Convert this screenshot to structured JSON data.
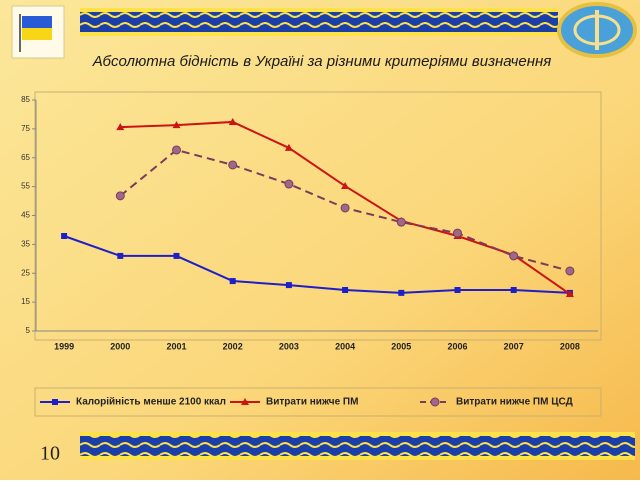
{
  "slide_number": "10",
  "chart_data": {
    "type": "line",
    "title": "Абсолютна бідність в Україні за різними критеріями визначення",
    "categories": [
      "1999",
      "2000",
      "2001",
      "2002",
      "2003",
      "2004",
      "2005",
      "2006",
      "2007",
      "2008"
    ],
    "series": [
      {
        "name": "Калорійність менше 2100 ккал",
        "color": "#1f1fc8",
        "marker": "square",
        "dash": false,
        "values": [
          37.9,
          31.0,
          31.0,
          22.3,
          20.9,
          19.2,
          18.2,
          19.2,
          19.2,
          18.2
        ]
      },
      {
        "name": "Витрати нижче ПМ",
        "color": "#cc1414",
        "marker": "triangle",
        "dash": false,
        "values": [
          null,
          75.6,
          76.3,
          77.4,
          68.4,
          55.2,
          43.1,
          37.9,
          31.3,
          17.8
        ]
      },
      {
        "name": "Витрати нижче ПМ ЦСД",
        "color": "#7a3c5a",
        "marker": "circle",
        "dash": true,
        "values": [
          null,
          51.8,
          67.7,
          62.5,
          55.9,
          47.6,
          42.7,
          38.9,
          31.0,
          25.8
        ]
      }
    ],
    "ylim": [
      5,
      85
    ],
    "yticks": [
      5,
      15,
      25,
      35,
      45,
      55,
      65,
      75,
      85
    ],
    "grid": false,
    "legend": "bottom"
  }
}
